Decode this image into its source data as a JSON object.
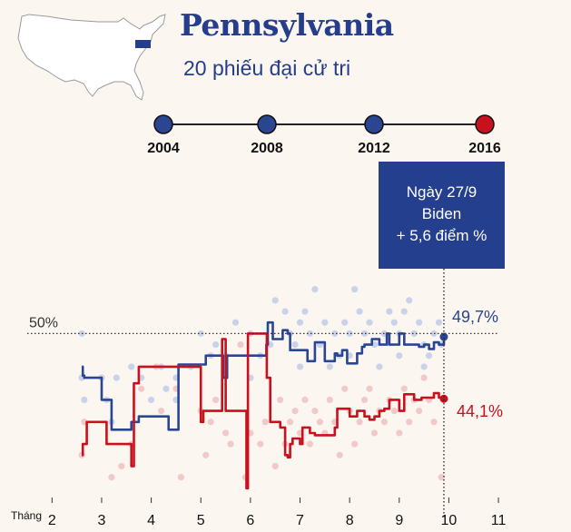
{
  "header": {
    "title": "Pennsylvania",
    "subtitle": "20 phiếu đại cử tri"
  },
  "timeline": {
    "years": [
      "2004",
      "2008",
      "2012",
      "2016"
    ],
    "winners": [
      "dem",
      "dem",
      "dem",
      "rep"
    ]
  },
  "tooltip": {
    "line1": "Ngày 27/9",
    "line2": "Biden",
    "line3": "+ 5,6 điểm %"
  },
  "colors": {
    "dem": "#2a4592",
    "rep": "#c9101d",
    "dem_dots": "#c9d2e8",
    "rep_dots": "#f2c9c9",
    "map_fill": "#ffffff",
    "map_stroke": "#999999"
  },
  "chart_data": {
    "type": "line",
    "xlabel": "Tháng",
    "x_ticks": [
      "2",
      "3",
      "4",
      "5",
      "6",
      "7",
      "8",
      "9",
      "10",
      "11"
    ],
    "xlim": [
      1.5,
      11.2
    ],
    "ylim": [
      35,
      58
    ],
    "reference_line": {
      "value": 50,
      "label": "50%"
    },
    "end_labels": {
      "biden": "49,7%",
      "trump": "44,1%"
    },
    "series": [
      {
        "key": "biden",
        "x": [
          2.6,
          2.62,
          2.65,
          2.9,
          3.0,
          3.05,
          3.2,
          3.22,
          3.5,
          3.6,
          3.65,
          3.75,
          3.8,
          4.2,
          4.35,
          4.5,
          4.55,
          5.0,
          5.05,
          5.1,
          5.2,
          5.4,
          5.45,
          5.5,
          5.53,
          5.6,
          5.8,
          5.85,
          6.3,
          6.32,
          6.35,
          6.4,
          6.45,
          6.55,
          6.65,
          6.75,
          6.8,
          7.1,
          7.15,
          7.2,
          7.3,
          7.35,
          7.5,
          7.55,
          7.7,
          7.75,
          7.85,
          7.95,
          8.1,
          8.15,
          8.25,
          8.3,
          8.45,
          8.55,
          8.6,
          8.75,
          8.8,
          9.0,
          9.1,
          9.3,
          9.4,
          9.5,
          9.6,
          9.7,
          9.8,
          9.9
        ],
        "y": [
          47.0,
          46.2,
          46.0,
          46.0,
          44.0,
          44.0,
          41.3,
          41.3,
          41.3,
          42.0,
          42.0,
          42.5,
          42.5,
          42.5,
          41.3,
          41.3,
          47.2,
          47.2,
          47.2,
          48.0,
          48.0,
          48.0,
          46.0,
          46.0,
          48.0,
          48.0,
          48.0,
          48.0,
          48.0,
          49.0,
          51.0,
          51.0,
          49.5,
          49.5,
          50.3,
          50.0,
          48.5,
          48.5,
          47.5,
          47.5,
          49.2,
          49.2,
          47.5,
          47.5,
          48.2,
          48.0,
          48.5,
          47.3,
          47.3,
          48.2,
          48.8,
          49.0,
          49.5,
          49.5,
          49.0,
          50.0,
          49.0,
          50.0,
          49.0,
          49.0,
          48.8,
          49.0,
          48.6,
          49.2,
          49.0,
          49.7
        ]
      },
      {
        "key": "trump",
        "x": [
          2.6,
          2.62,
          2.7,
          2.75,
          3.0,
          3.1,
          3.3,
          3.35,
          3.6,
          3.65,
          3.7,
          3.75,
          4.1,
          4.15,
          4.45,
          4.55,
          5.0,
          5.05,
          5.1,
          5.4,
          5.43,
          5.5,
          5.9,
          5.92,
          5.95,
          6.0,
          6.05,
          6.3,
          6.33,
          6.4,
          6.6,
          6.7,
          6.75,
          6.8,
          6.85,
          7.0,
          7.05,
          7.2,
          7.3,
          7.5,
          7.7,
          7.75,
          7.9,
          8.0,
          8.15,
          8.3,
          8.4,
          8.5,
          8.6,
          8.7,
          8.8,
          9.0,
          9.1,
          9.3,
          9.45,
          9.6,
          9.7,
          9.8,
          9.9
        ],
        "y": [
          39.0,
          40.0,
          42.0,
          42.0,
          42.0,
          40.0,
          40.0,
          40.0,
          38.0,
          45.5,
          45.5,
          47.0,
          47.0,
          47.0,
          47.0,
          47.0,
          42.0,
          43.0,
          43.0,
          43.0,
          49.5,
          43.0,
          43.0,
          36.0,
          50.0,
          50.0,
          50.0,
          50.0,
          46.0,
          42.0,
          41.5,
          39.0,
          38.8,
          40.0,
          40.5,
          40.0,
          41.5,
          41.0,
          40.8,
          40.8,
          41.5,
          43.2,
          43.2,
          42.5,
          43.0,
          42.5,
          42.2,
          42.5,
          43.0,
          43.2,
          44.0,
          43.0,
          44.5,
          44.0,
          44.2,
          44.2,
          44.6,
          44.2,
          44.1
        ]
      }
    ],
    "dem_polls": {
      "x": [
        2.6,
        2.6,
        2.65,
        3.0,
        3.1,
        3.2,
        3.3,
        3.6,
        3.8,
        4.0,
        4.2,
        4.3,
        4.5,
        4.5,
        4.8,
        5.0,
        5.2,
        5.3,
        5.5,
        5.7,
        6.0,
        6.0,
        6.2,
        6.4,
        6.5,
        6.7,
        6.8,
        6.9,
        7.0,
        7.0,
        7.1,
        7.2,
        7.3,
        7.4,
        7.5,
        7.6,
        7.7,
        7.8,
        7.9,
        8.0,
        8.0,
        8.1,
        8.2,
        8.3,
        8.4,
        8.5,
        8.6,
        8.7,
        8.8,
        8.9,
        9.0,
        9.0,
        9.1,
        9.2,
        9.3,
        9.4,
        9.5,
        9.5,
        9.6,
        9.7,
        9.8,
        9.85
      ],
      "y": [
        50,
        46,
        44,
        46,
        44,
        42,
        46,
        47,
        46,
        44,
        47,
        45,
        44,
        46,
        47,
        50,
        48,
        49,
        48,
        51,
        50,
        46,
        48,
        49,
        53,
        52,
        50,
        49,
        51,
        47,
        52,
        50,
        54,
        49,
        51,
        47,
        50,
        48,
        51,
        50,
        48,
        54,
        52,
        50,
        51,
        49,
        47,
        50,
        52,
        51,
        50,
        48,
        52,
        53,
        50,
        51,
        49,
        47,
        48,
        50,
        51,
        49
      ]
    },
    "rep_polls": {
      "x": [
        2.6,
        2.65,
        3.2,
        3.4,
        3.6,
        3.8,
        4.1,
        4.2,
        4.5,
        4.6,
        5.0,
        5.1,
        5.2,
        5.3,
        5.5,
        5.6,
        5.8,
        5.9,
        6.0,
        6.2,
        6.3,
        6.5,
        6.6,
        6.7,
        6.8,
        6.9,
        7.0,
        7.1,
        7.2,
        7.3,
        7.4,
        7.5,
        7.6,
        7.7,
        7.8,
        7.9,
        8.0,
        8.1,
        8.2,
        8.3,
        8.4,
        8.5,
        8.6,
        8.7,
        8.8,
        8.9,
        9.0,
        9.1,
        9.2,
        9.3,
        9.4,
        9.5,
        9.6,
        9.7,
        9.85,
        9.9
      ],
      "y": [
        39,
        42,
        37,
        38,
        40,
        45,
        47,
        43,
        45,
        37,
        43,
        39,
        42,
        44,
        41,
        40,
        49,
        37,
        41,
        40,
        42,
        38,
        44,
        40,
        42,
        43,
        41,
        44,
        40,
        43,
        42,
        41,
        44,
        42,
        39,
        45,
        43,
        40,
        42,
        44,
        45,
        41,
        43,
        42,
        44,
        43,
        41,
        45,
        42,
        44,
        43,
        46,
        44,
        42,
        37,
        44
      ]
    }
  }
}
